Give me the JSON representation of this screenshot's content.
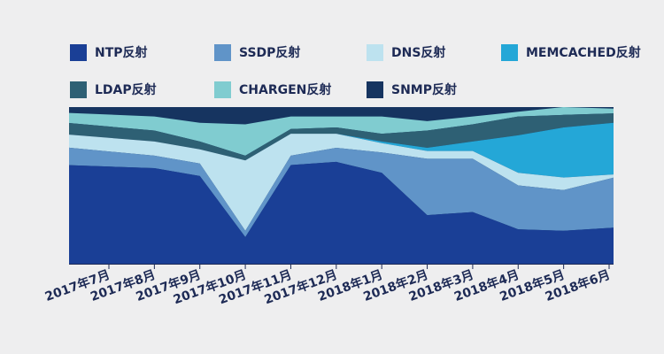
{
  "chart_data": {
    "type": "area",
    "stacked": true,
    "normalized": true,
    "grid": false,
    "legend_position": "top",
    "categories": [
      "2017年7月",
      "2017年8月",
      "2017年9月",
      "2017年10月",
      "2017年11月",
      "2017年12月",
      "2018年1月",
      "2018年2月",
      "2018年3月",
      "2018年4月",
      "2018年5月",
      "2018年6月"
    ],
    "series": [
      {
        "name": "NTP反射",
        "color": "#1a3f96",
        "values": [
          0.68,
          0.61,
          0.56,
          0.17,
          0.63,
          0.65,
          0.58,
          0.31,
          0.33,
          0.22,
          0.21,
          0.23
        ]
      },
      {
        "name": "SSDP反射",
        "color": "#6094c8",
        "values": [
          0.12,
          0.08,
          0.08,
          0.04,
          0.06,
          0.09,
          0.13,
          0.36,
          0.34,
          0.28,
          0.26,
          0.32
        ]
      },
      {
        "name": "DNS反射",
        "color": "#bde2ef",
        "values": [
          0.09,
          0.09,
          0.09,
          0.45,
          0.14,
          0.09,
          0.06,
          0.05,
          0.05,
          0.08,
          0.08,
          0.02
        ]
      },
      {
        "name": "MEMCACHED反射",
        "color": "#24a7d7",
        "values": [
          0.0,
          0.0,
          0.0,
          0.0,
          0.0,
          0.0,
          0.01,
          0.02,
          0.06,
          0.24,
          0.32,
          0.33
        ]
      },
      {
        "name": "LDAP反射",
        "color": "#2e6074",
        "values": [
          0.08,
          0.07,
          0.05,
          0.03,
          0.03,
          0.04,
          0.05,
          0.11,
          0.11,
          0.12,
          0.08,
          0.06
        ]
      },
      {
        "name": "CHARGEN反射",
        "color": "#80ccd0",
        "values": [
          0.07,
          0.09,
          0.12,
          0.2,
          0.08,
          0.07,
          0.11,
          0.06,
          0.05,
          0.03,
          0.05,
          0.03
        ]
      },
      {
        "name": "SNMP反射",
        "color": "#163460",
        "values": [
          0.04,
          0.06,
          0.1,
          0.11,
          0.06,
          0.06,
          0.06,
          0.09,
          0.06,
          0.03,
          0.0,
          0.01
        ]
      }
    ]
  }
}
